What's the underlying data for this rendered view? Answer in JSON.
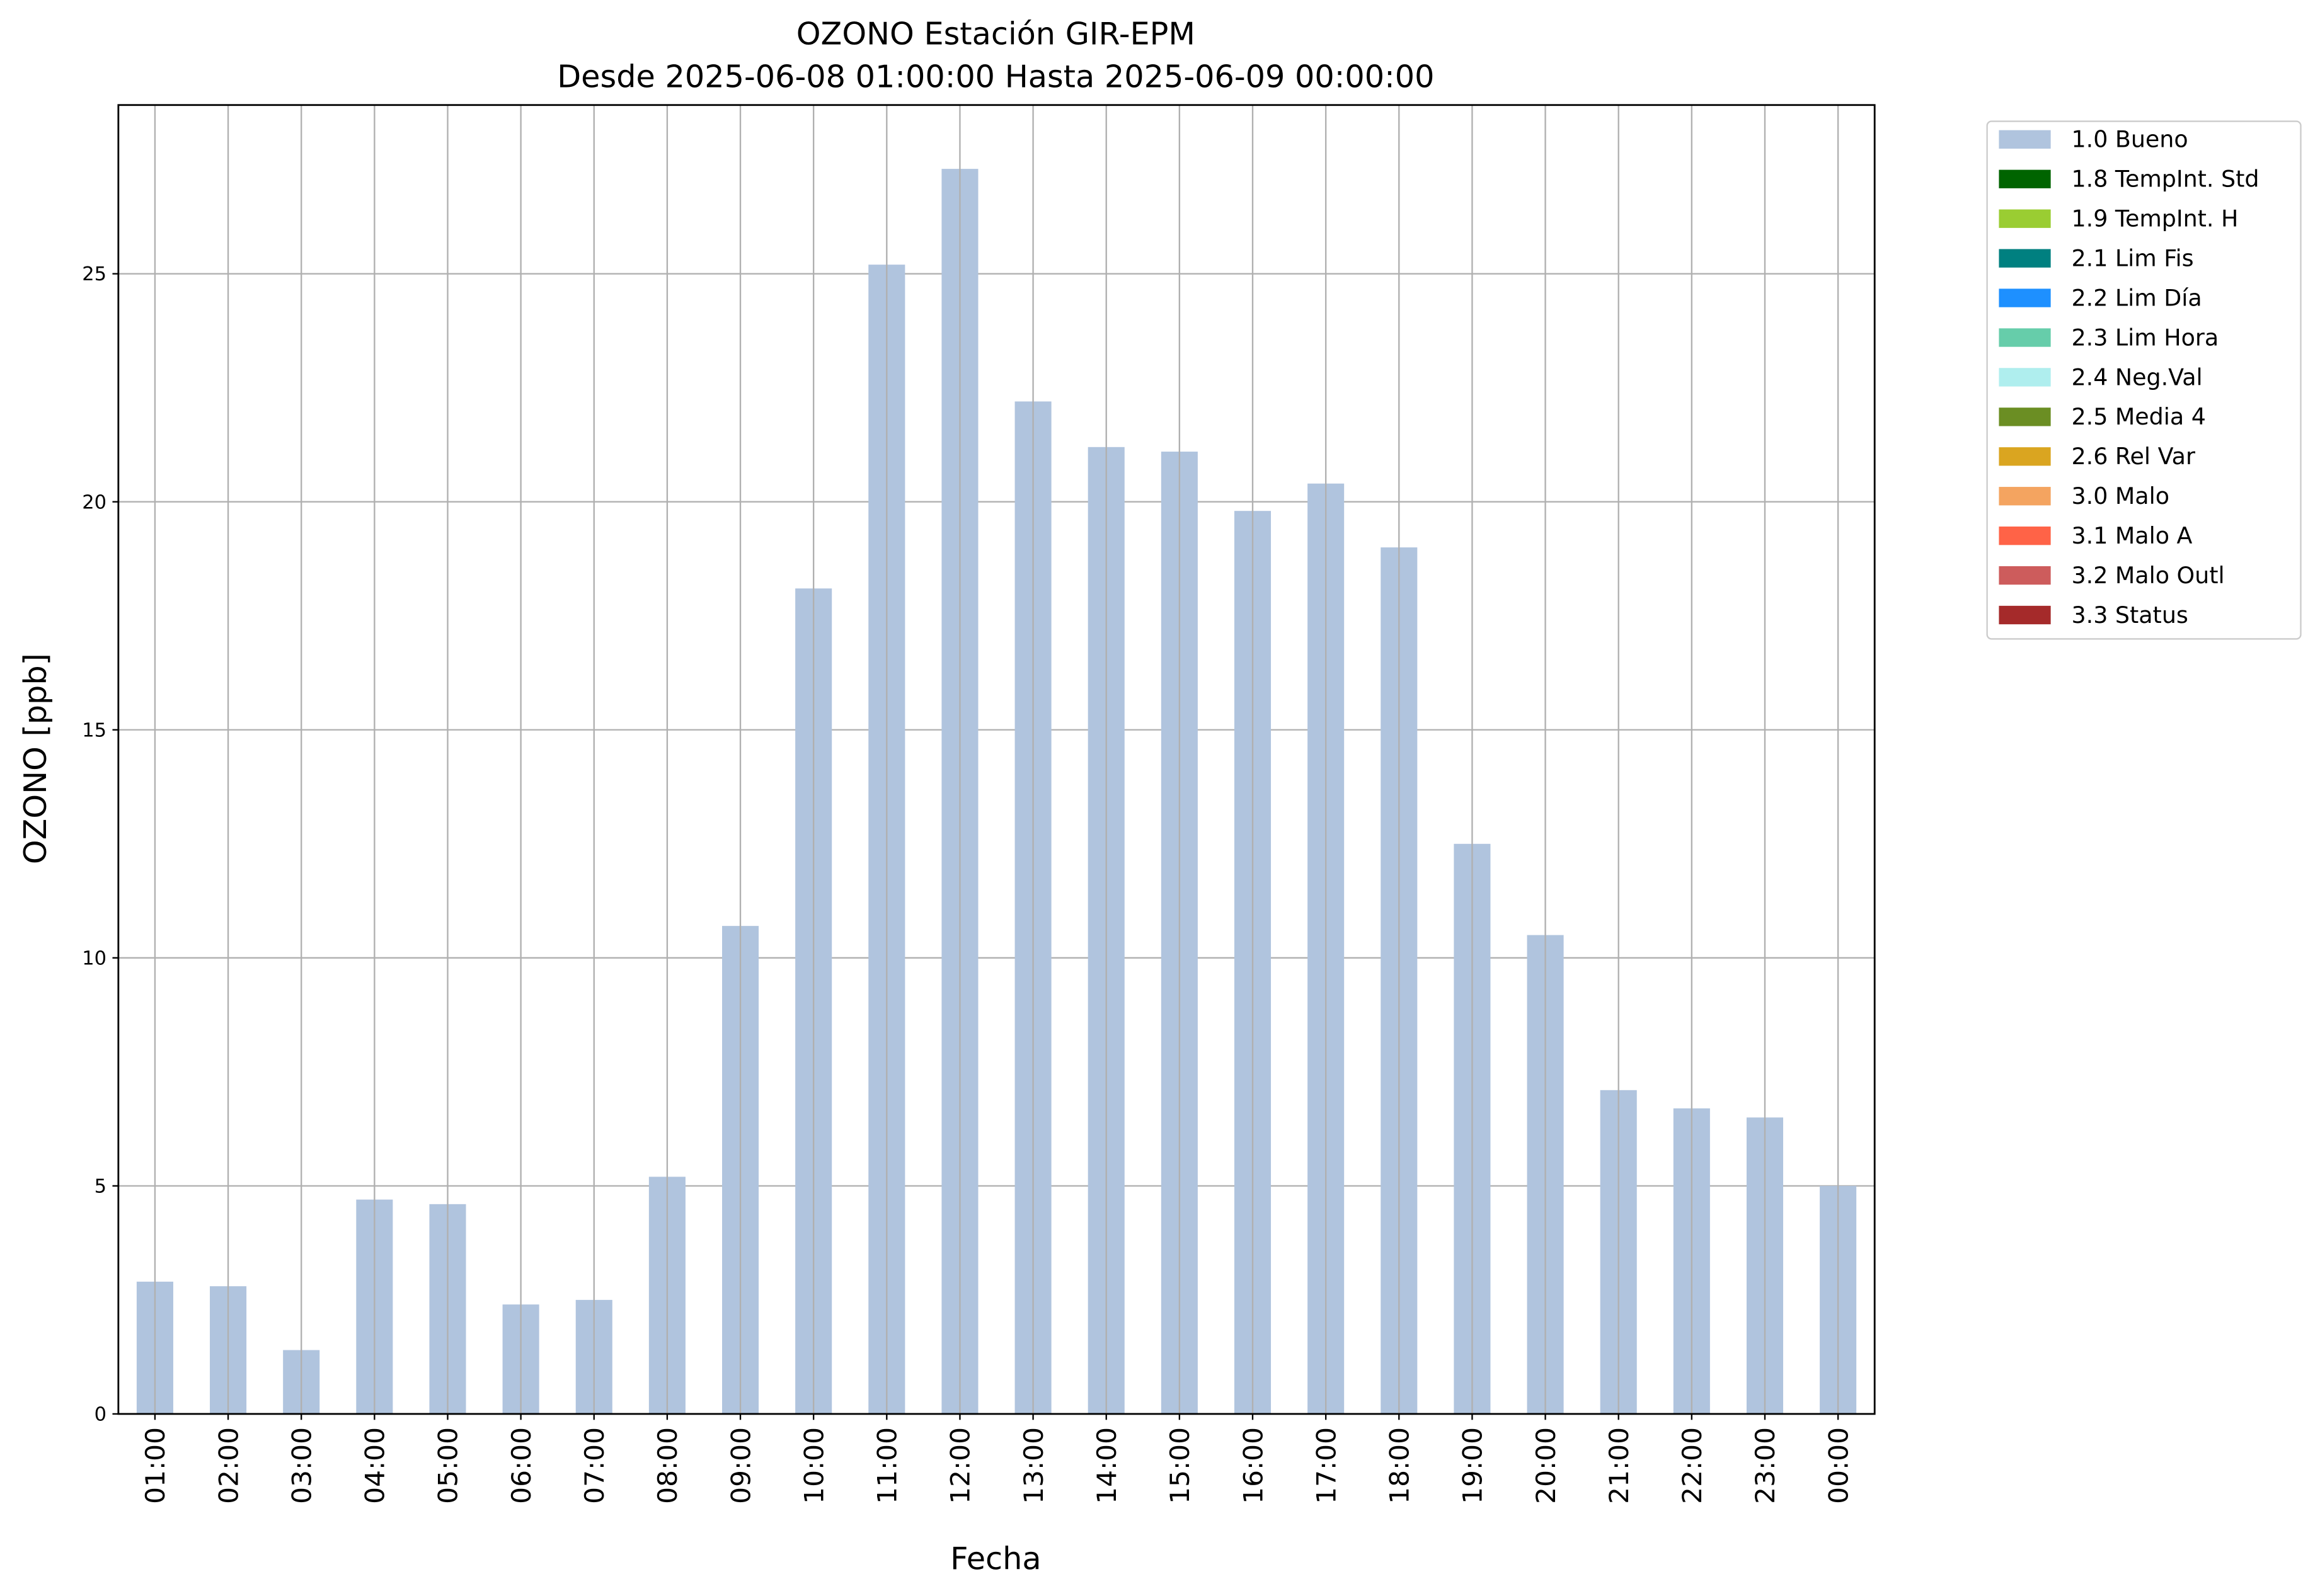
{
  "chart_data": {
    "type": "bar",
    "title": "OZONO Estación GIR-EPM",
    "subtitle": "Desde 2025-06-08 01:00:00 Hasta 2025-06-09 00:00:00",
    "x_label": "Fecha",
    "y_label": "OZONO [ppb]",
    "categories": [
      "01:00",
      "02:00",
      "03:00",
      "04:00",
      "05:00",
      "06:00",
      "07:00",
      "08:00",
      "09:00",
      "10:00",
      "11:00",
      "12:00",
      "13:00",
      "14:00",
      "15:00",
      "16:00",
      "17:00",
      "18:00",
      "19:00",
      "20:00",
      "21:00",
      "22:00",
      "23:00",
      "00:00"
    ],
    "series": [
      {
        "name": "1.0 Bueno",
        "color": "#b0c4de",
        "values": [
          2.9,
          2.8,
          1.4,
          4.7,
          4.6,
          2.4,
          2.5,
          5.2,
          10.7,
          18.1,
          25.2,
          27.3,
          22.2,
          21.2,
          21.1,
          19.8,
          20.4,
          19.0,
          12.5,
          10.5,
          7.1,
          6.7,
          6.5,
          5.0
        ]
      },
      {
        "name": "1.8 TempInt. Std",
        "color": "#006400"
      },
      {
        "name": "1.9 TempInt. H",
        "color": "#9acd32"
      },
      {
        "name": "2.1 Lim Fis",
        "color": "#008080"
      },
      {
        "name": "2.2 Lim Día",
        "color": "#1e90ff"
      },
      {
        "name": "2.3 Lim Hora",
        "color": "#66cdaa"
      },
      {
        "name": "2.4 Neg.Val",
        "color": "#afeeee"
      },
      {
        "name": "2.5 Media 4",
        "color": "#6b8e23"
      },
      {
        "name": "2.6 Rel Var",
        "color": "#daa520"
      },
      {
        "name": "3.0 Malo",
        "color": "#f4a460"
      },
      {
        "name": "3.1 Malo A",
        "color": "#ff6347"
      },
      {
        "name": "3.2 Malo Outl",
        "color": "#cd5c5c"
      },
      {
        "name": "3.3 Status",
        "color": "#a52a2a"
      }
    ],
    "ylim": [
      0,
      28.7
    ],
    "yticks": [
      0,
      5,
      10,
      15,
      20,
      25
    ],
    "grid": true,
    "legend": "outside upper right"
  }
}
